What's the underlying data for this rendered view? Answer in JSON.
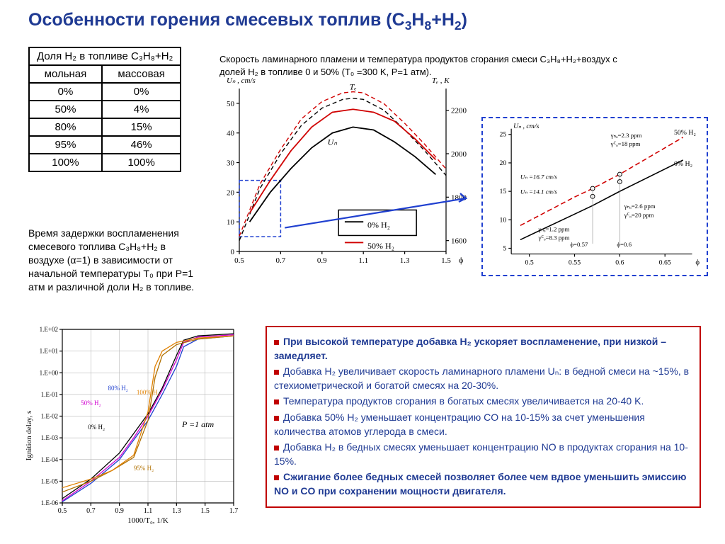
{
  "title_prefix": "Особенности горения смесевых топлив (C",
  "title_mid": "H",
  "title_end": "+H",
  "table": {
    "header_top": "Доля H₂ в топливе C₃H₈+H₂",
    "col1": "мольная",
    "col2": "массовая",
    "rows": [
      [
        "0%",
        "0%"
      ],
      [
        "50%",
        "4%"
      ],
      [
        "80%",
        "15%"
      ],
      [
        "95%",
        "46%"
      ],
      [
        "100%",
        "100%"
      ]
    ]
  },
  "desc1": "Скорость ламинарного пламени и температура продуктов сгорания смеси C₃H₈+H₂+воздух с долей H₂ в топливе 0 и 50% (T₀ =300 K, P=1 атм).",
  "desc2": "Время задержки воспламенения смесевого топлива C₃H₈+H₂ в воздухе (α=1) в зависимости от начальной температуры T₀ при P=1 атм и различной доли H₂ в топливе.",
  "chart1": {
    "y1_label": "Uₙ , cm/s",
    "y2_label": "Tₑ , K",
    "x_label": "ϕ",
    "y1_ticks": [
      0,
      10,
      20,
      30,
      40,
      50
    ],
    "y2_ticks": [
      1600,
      1800,
      2000,
      2200
    ],
    "x_ticks": [
      0.5,
      0.7,
      0.9,
      1.1,
      1.3,
      1.5
    ],
    "xlim": [
      0.5,
      1.5
    ],
    "y1lim": [
      0,
      55
    ],
    "y2lim": [
      1550,
      2300
    ],
    "series": {
      "un_0": {
        "color": "#000",
        "dash": "0",
        "width": 1.8,
        "pts": [
          [
            0.55,
            10
          ],
          [
            0.65,
            20
          ],
          [
            0.75,
            28
          ],
          [
            0.85,
            35
          ],
          [
            0.95,
            40
          ],
          [
            1.05,
            42
          ],
          [
            1.15,
            41
          ],
          [
            1.25,
            37
          ],
          [
            1.35,
            32
          ],
          [
            1.45,
            26
          ]
        ]
      },
      "un_50": {
        "color": "#d00000",
        "dash": "0",
        "width": 1.8,
        "pts": [
          [
            0.55,
            13
          ],
          [
            0.65,
            24
          ],
          [
            0.75,
            34
          ],
          [
            0.85,
            42
          ],
          [
            0.95,
            47
          ],
          [
            1.05,
            48
          ],
          [
            1.15,
            47
          ],
          [
            1.25,
            44
          ],
          [
            1.35,
            38
          ],
          [
            1.45,
            31
          ]
        ]
      },
      "te_0": {
        "color": "#000",
        "dash": "6 4",
        "width": 1.4,
        "pts": [
          [
            0.5,
            1600
          ],
          [
            0.6,
            1840
          ],
          [
            0.7,
            2000
          ],
          [
            0.8,
            2130
          ],
          [
            0.9,
            2210
          ],
          [
            1.0,
            2250
          ],
          [
            1.05,
            2255
          ],
          [
            1.1,
            2250
          ],
          [
            1.2,
            2200
          ],
          [
            1.3,
            2110
          ],
          [
            1.4,
            2010
          ],
          [
            1.5,
            1900
          ]
        ]
      },
      "te_50": {
        "color": "#d00000",
        "dash": "6 4",
        "width": 1.4,
        "pts": [
          [
            0.5,
            1620
          ],
          [
            0.6,
            1860
          ],
          [
            0.7,
            2020
          ],
          [
            0.8,
            2160
          ],
          [
            0.9,
            2240
          ],
          [
            1.0,
            2280
          ],
          [
            1.05,
            2285
          ],
          [
            1.1,
            2280
          ],
          [
            1.2,
            2230
          ],
          [
            1.3,
            2140
          ],
          [
            1.4,
            2040
          ],
          [
            1.5,
            1930
          ]
        ]
      }
    },
    "legend": [
      [
        "0% H₂",
        "#000"
      ],
      [
        "50% H₂",
        "#d00000"
      ]
    ],
    "un_marker": "Uₙ",
    "te_marker": "Tₑ",
    "zoom_box_color": "#2040d0"
  },
  "chart2": {
    "y_label": "Uₙ , cm/s",
    "x_label": "ϕ",
    "y_ticks": [
      5,
      10,
      15,
      20,
      25
    ],
    "x_ticks": [
      0.5,
      0.55,
      0.6,
      0.65
    ],
    "xlim": [
      0.48,
      0.68
    ],
    "ylim": [
      4,
      26
    ],
    "line_0": {
      "color": "#000",
      "pts": [
        [
          0.49,
          6.5
        ],
        [
          0.55,
          11
        ],
        [
          0.57,
          12.5
        ],
        [
          0.6,
          15
        ],
        [
          0.67,
          20.5
        ]
      ]
    },
    "line_50": {
      "color": "#d00000",
      "dash": "7 4",
      "pts": [
        [
          0.49,
          9
        ],
        [
          0.55,
          14
        ],
        [
          0.57,
          15.5
        ],
        [
          0.6,
          18
        ],
        [
          0.67,
          24.5
        ]
      ]
    },
    "markers": [
      [
        0.57,
        14.1
      ],
      [
        0.6,
        16.7
      ],
      [
        0.57,
        15.5
      ],
      [
        0.6,
        18
      ]
    ],
    "annot": {
      "l50": "50% H₂",
      "l0": "0% H₂",
      "a1": "γₙₒ=2.3 ppm",
      "a2": "γꟲₒ=18 ppm",
      "a3": "Uₙ =16.7 cm/s",
      "a4": "Uₙ =14.1 cm/s",
      "a5": "γₙₒ=1.2 ppm",
      "a6": "γꟲₒ=8.3 ppm",
      "a7": "γₙₒ=2.6 ppm",
      "a8": "γꟲₒ=20 ppm",
      "a9": "ϕ=0.57",
      "a10": "ϕ=0.6"
    }
  },
  "chart3": {
    "y_label": "Ignition delay, s",
    "x_label": "1000/T₀, 1/K",
    "p_label": "P =1 atm",
    "y_ticks": [
      "1.E-06",
      "1.E-05",
      "1.E-04",
      "1.E-03",
      "1.E-02",
      "1.E-01",
      "1.E+00",
      "1.E+01",
      "1.E+02"
    ],
    "x_ticks": [
      0.5,
      0.7,
      0.9,
      1.1,
      1.3,
      1.5,
      1.7
    ],
    "xlim": [
      0.5,
      1.7
    ],
    "ylim": [
      -6,
      2
    ],
    "series": {
      "s0": {
        "color": "#000",
        "label": "0% H₂",
        "pts": [
          [
            0.5,
            -5.8
          ],
          [
            0.7,
            -4.9
          ],
          [
            0.9,
            -3.7
          ],
          [
            1.0,
            -2.8
          ],
          [
            1.1,
            -1.9
          ],
          [
            1.2,
            -0.7
          ],
          [
            1.3,
            0.8
          ],
          [
            1.35,
            1.5
          ],
          [
            1.45,
            1.7
          ],
          [
            1.7,
            1.8
          ]
        ]
      },
      "s50": {
        "color": "#d000d0",
        "label": "50% H₂",
        "pts": [
          [
            0.5,
            -5.9
          ],
          [
            0.7,
            -5.0
          ],
          [
            0.9,
            -3.9
          ],
          [
            1.0,
            -3.0
          ],
          [
            1.1,
            -2.0
          ],
          [
            1.2,
            -0.8
          ],
          [
            1.3,
            0.6
          ],
          [
            1.35,
            1.4
          ],
          [
            1.45,
            1.65
          ],
          [
            1.7,
            1.75
          ]
        ]
      },
      "s80": {
        "color": "#2040d0",
        "label": "80% H₂",
        "pts": [
          [
            0.5,
            -5.95
          ],
          [
            0.7,
            -5.1
          ],
          [
            0.9,
            -4.0
          ],
          [
            1.0,
            -3.1
          ],
          [
            1.1,
            -2.2
          ],
          [
            1.2,
            -1.0
          ],
          [
            1.3,
            0.3
          ],
          [
            1.35,
            1.2
          ],
          [
            1.45,
            1.55
          ],
          [
            1.7,
            1.7
          ]
        ]
      },
      "s95": {
        "color": "#b07000",
        "label": "95% H₂",
        "pts": [
          [
            0.5,
            -5.5
          ],
          [
            0.7,
            -5.0
          ],
          [
            0.85,
            -4.5
          ],
          [
            1.0,
            -3.9
          ],
          [
            1.1,
            -2.2
          ],
          [
            1.15,
            -0.2
          ],
          [
            1.2,
            0.8
          ],
          [
            1.3,
            1.3
          ],
          [
            1.45,
            1.55
          ],
          [
            1.7,
            1.7
          ]
        ]
      },
      "s100": {
        "color": "#e08000",
        "label": "100% H₂",
        "pts": [
          [
            0.5,
            -5.3
          ],
          [
            0.7,
            -4.9
          ],
          [
            0.85,
            -4.5
          ],
          [
            1.0,
            -3.8
          ],
          [
            1.1,
            -1.8
          ],
          [
            1.15,
            0.3
          ],
          [
            1.2,
            1.0
          ],
          [
            1.3,
            1.4
          ],
          [
            1.45,
            1.6
          ],
          [
            1.7,
            1.7
          ]
        ]
      }
    }
  },
  "bullets": [
    [
      "При высокой температуре добавка H₂ ускоряет воспламенение, при низкой – замедляет.",
      true
    ],
    [
      "Добавка H₂ увеличивает скорость ламинарного пламени Uₙ: в бедной смеси на ~15%, в стехиометрической и богатой смесях на 20-30%.",
      false
    ],
    [
      "Температура продуктов сгорания в богатых смесях увеличивается на 20-40 K.",
      false
    ],
    [
      "Добавка 50% H₂ уменьшает концентрацию CO на 10-15% за счет уменьшения количества атомов углерода в смеси.",
      false
    ],
    [
      "Добавка H₂ в бедных смесях уменьшает концентрацию NO в продуктах сгорания на 10-15%.",
      false
    ],
    [
      "Сжигание более бедных смесей позволяет более чем вдвое уменьшить эмиссию NO и CO при сохранении мощности двигателя.",
      true
    ]
  ]
}
